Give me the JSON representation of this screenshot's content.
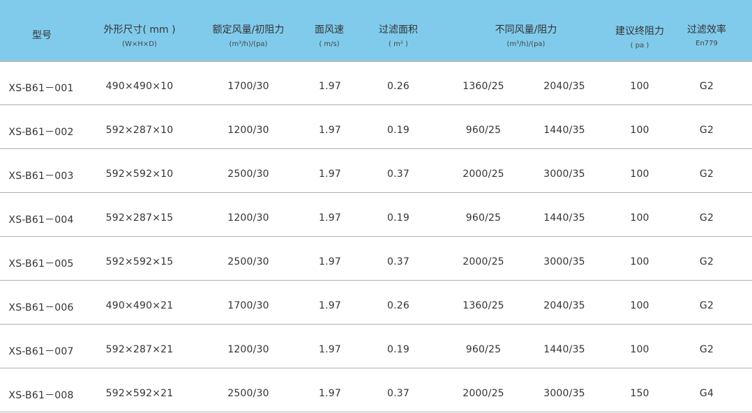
{
  "header": {
    "model": "型号",
    "size": {
      "title": "外形尺寸( mm )",
      "sub": "(W×H×D)"
    },
    "rated": {
      "title": "额定风量/初阻力",
      "sub": "(m³/h)/(pa)"
    },
    "speed": {
      "title": "面风速",
      "sub": "( m/s)"
    },
    "area": {
      "title": "过滤面积",
      "sub": "( m² )"
    },
    "diff": {
      "title": "不同风量/阻力",
      "sub": "(m³/h)/(pa)"
    },
    "final": {
      "title": "建议终阻力",
      "sub": "( pa )"
    },
    "eff": {
      "title": "过滤效率",
      "sub": "En779"
    }
  },
  "rows": [
    {
      "model": "XS-B61－001",
      "size": "490×490×10",
      "rated": "1700/30",
      "speed": "1.97",
      "area": "0.26",
      "d1": "1360/25",
      "d2": "2040/35",
      "final": "100",
      "eff": "G2"
    },
    {
      "model": "XS-B61－002",
      "size": "592×287×10",
      "rated": "1200/30",
      "speed": "1.97",
      "area": "0.19",
      "d1": "960/25",
      "d2": "1440/35",
      "final": "100",
      "eff": "G2"
    },
    {
      "model": "XS-B61－003",
      "size": "592×592×10",
      "rated": "2500/30",
      "speed": "1.97",
      "area": "0.37",
      "d1": "2000/25",
      "d2": "3000/35",
      "final": "100",
      "eff": "G2"
    },
    {
      "model": "XS-B61－004",
      "size": "592×287×15",
      "rated": "1200/30",
      "speed": "1.97",
      "area": "0.19",
      "d1": "960/25",
      "d2": "1440/35",
      "final": "100",
      "eff": "G2"
    },
    {
      "model": "XS-B61－005",
      "size": "592×592×15",
      "rated": "2500/30",
      "speed": "1.97",
      "area": "0.37",
      "d1": "2000/25",
      "d2": "3000/35",
      "final": "100",
      "eff": "G2"
    },
    {
      "model": "XS-B61－006",
      "size": "490×490×21",
      "rated": "1700/30",
      "speed": "1.97",
      "area": "0.26",
      "d1": "1360/25",
      "d2": "2040/35",
      "final": "100",
      "eff": "G2"
    },
    {
      "model": "XS-B61－007",
      "size": "592×287×21",
      "rated": "1200/30",
      "speed": "1.97",
      "area": "0.19",
      "d1": "960/25",
      "d2": "1440/35",
      "final": "100",
      "eff": "G2"
    },
    {
      "model": "XS-B61－008",
      "size": "592×592×21",
      "rated": "2500/30",
      "speed": "1.97",
      "area": "0.37",
      "d1": "2000/25",
      "d2": "3000/35",
      "final": "150",
      "eff": "G4"
    }
  ]
}
